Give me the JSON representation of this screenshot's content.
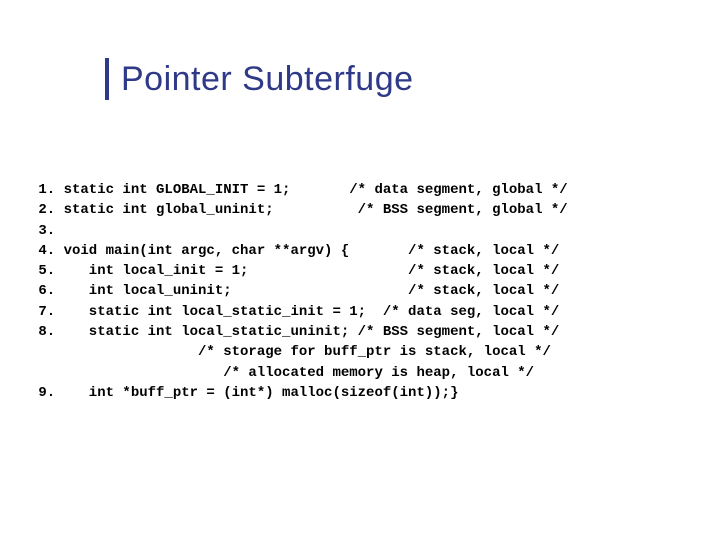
{
  "slide": {
    "title": "Pointer Subterfuge",
    "accent_color": "#2e3a87",
    "title_font_size": 34,
    "background": "#ffffff"
  },
  "code": {
    "font_family": "Courier New",
    "font_size": 14,
    "font_weight": "bold",
    "lines": [
      " 1. static int GLOBAL_INIT = 1;       /* data segment, global */",
      " 2. static int global_uninit;          /* BSS segment, global */",
      " 3.",
      " 4. void main(int argc, char **argv) {       /* stack, local */",
      " 5.    int local_init = 1;                   /* stack, local */",
      " 6.    int local_uninit;                     /* stack, local */",
      " 7.    static int local_static_init = 1;  /* data seg, local */",
      " 8.    static int local_static_uninit; /* BSS segment, local */",
      "                    /* storage for buff_ptr is stack, local */",
      "                       /* allocated memory is heap, local */",
      " 9.    int *buff_ptr = (int*) malloc(sizeof(int));}"
    ]
  }
}
